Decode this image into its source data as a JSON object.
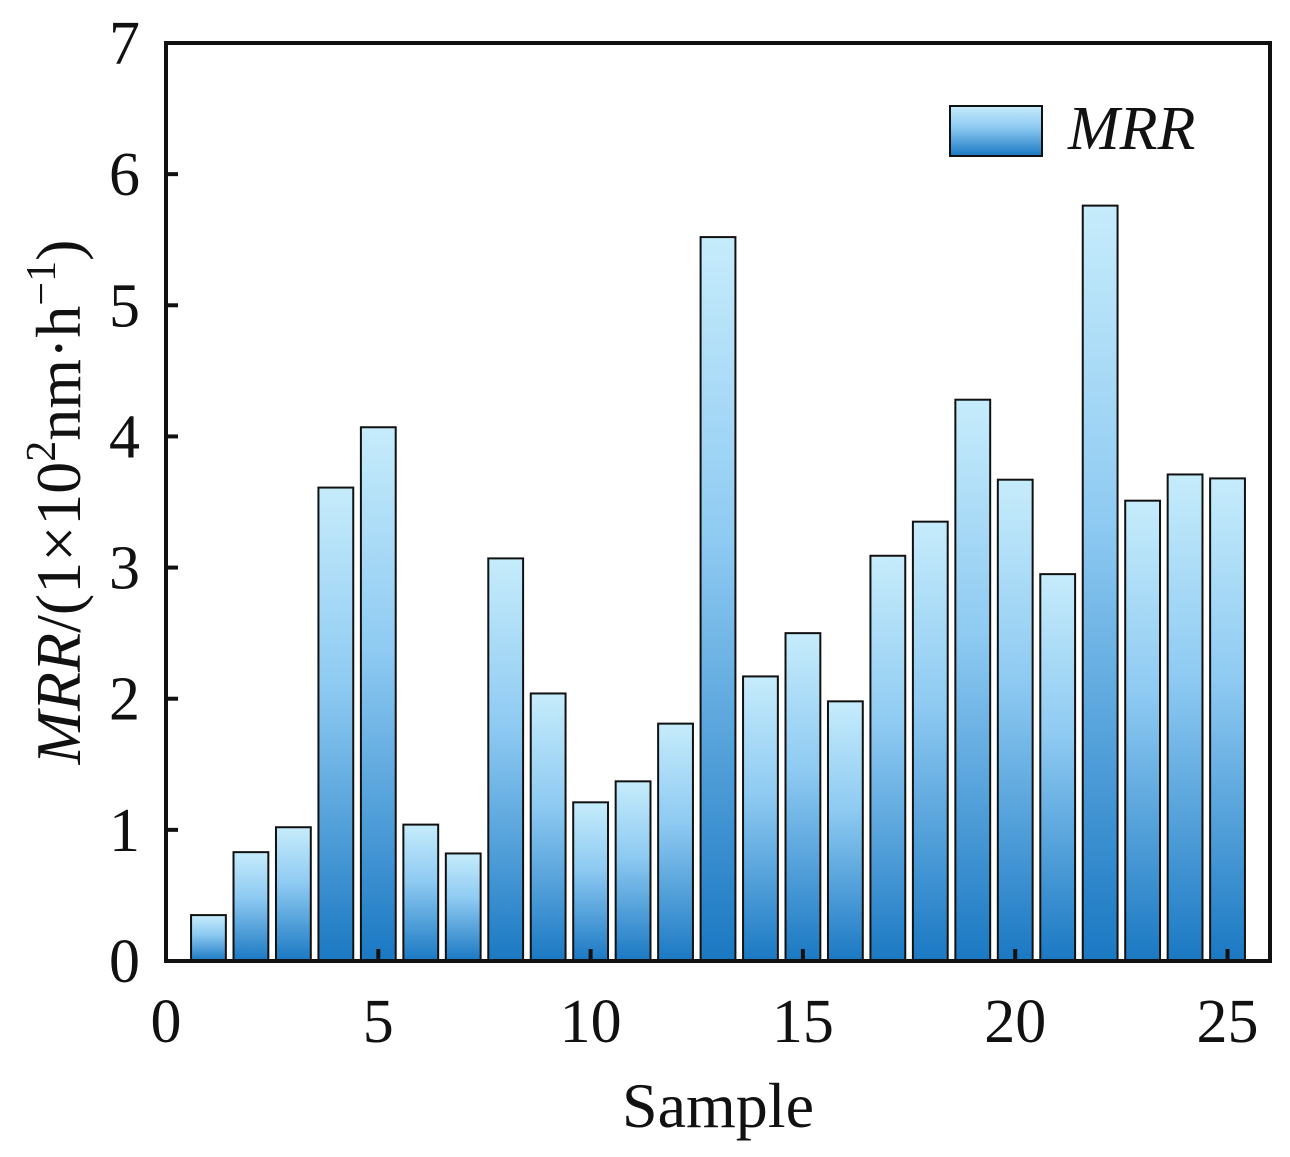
{
  "chart_data": {
    "type": "bar",
    "title": "",
    "xlabel": "Sample",
    "ylabel_parts": {
      "italic": "MRR",
      "prefix": "/(1×10",
      "sup2": "2",
      "middle": "nm·h",
      "sup_minus1": "−1",
      "suffix": ")"
    },
    "xlim": [
      0,
      26
    ],
    "ylim": [
      0,
      7
    ],
    "xticks": [
      0,
      5,
      10,
      15,
      20,
      25
    ],
    "yticks": [
      0,
      1,
      2,
      3,
      4,
      5,
      6,
      7
    ],
    "legend": {
      "label": "MRR",
      "placement": "top-right"
    },
    "series": [
      {
        "name": "MRR",
        "x": [
          1,
          2,
          3,
          4,
          5,
          6,
          7,
          8,
          9,
          10,
          11,
          12,
          13,
          14,
          15,
          16,
          17,
          18,
          19,
          20,
          21,
          22,
          23,
          24,
          25
        ],
        "values": [
          0.35,
          0.83,
          1.02,
          3.61,
          4.07,
          1.04,
          0.82,
          3.07,
          2.04,
          1.21,
          1.37,
          1.81,
          5.52,
          2.17,
          2.5,
          1.98,
          3.09,
          3.35,
          4.28,
          3.67,
          2.95,
          5.76,
          3.51,
          3.71,
          3.68
        ]
      }
    ],
    "colors": {
      "bar_top": "#c6ecfb",
      "bar_bottom": "#1a78c2",
      "bar_edge": "#111111",
      "axis": "#111111"
    }
  }
}
